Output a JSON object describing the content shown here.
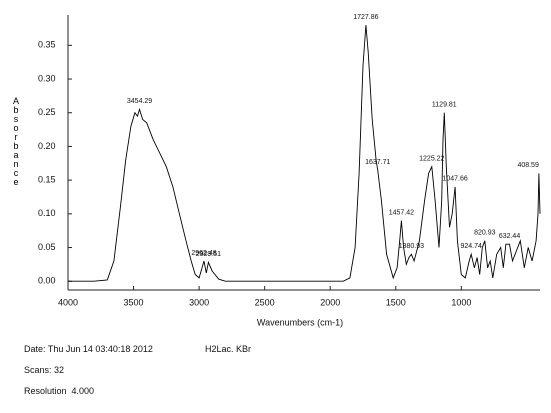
{
  "chart_data": {
    "type": "line",
    "y_label": "Absorbance",
    "x_label": "Wavenumbers (cm-1)",
    "color": "#000000",
    "xlim": [
      4000,
      400
    ],
    "ylim": [
      -0.013,
      0.395
    ],
    "xticks": [
      4000,
      3500,
      3000,
      2500,
      2000,
      1500,
      1000
    ],
    "yticks": [
      {
        "value": 0,
        "label": "0.00"
      },
      {
        "value": 0.05,
        "label": "0.05"
      },
      {
        "value": 0.1,
        "label": "0.10"
      },
      {
        "value": 0.15,
        "label": "0.15"
      },
      {
        "value": 0.2,
        "label": "0.20"
      },
      {
        "value": 0.25,
        "label": "0.25"
      },
      {
        "value": 0.3,
        "label": "0.30"
      },
      {
        "value": 0.35,
        "label": "0.35"
      }
    ],
    "x": [
      4000,
      3800,
      3700,
      3650,
      3600,
      3560,
      3520,
      3490,
      3470,
      3454.29,
      3430,
      3400,
      3350,
      3300,
      3250,
      3200,
      3150,
      3100,
      3060,
      3030,
      3000,
      2962.48,
      2945,
      2929.51,
      2900,
      2850,
      2800,
      2500,
      2100,
      1900,
      1850,
      1810,
      1780,
      1750,
      1727.86,
      1710,
      1680,
      1650,
      1637.71,
      1610,
      1570,
      1520,
      1490,
      1470,
      1457.42,
      1440,
      1420,
      1400,
      1380.93,
      1360,
      1320,
      1280,
      1250,
      1225.22,
      1200,
      1170,
      1150,
      1140,
      1129.81,
      1115,
      1090,
      1070,
      1047.66,
      1030,
      1000,
      970,
      940,
      924.74,
      900,
      880,
      860,
      840,
      820.93,
      800,
      780,
      760,
      730,
      700,
      680,
      660,
      632.44,
      610,
      580,
      550,
      520,
      490,
      460,
      430,
      415,
      408.59,
      400
    ],
    "values": [
      0,
      0,
      0.002,
      0.03,
      0.11,
      0.18,
      0.23,
      0.25,
      0.245,
      0.255,
      0.24,
      0.235,
      0.21,
      0.19,
      0.17,
      0.14,
      0.1,
      0.06,
      0.03,
      0.01,
      0.005,
      0.03,
      0.012,
      0.028,
      0.015,
      0.003,
      0,
      0,
      0,
      0,
      0.005,
      0.05,
      0.16,
      0.32,
      0.38,
      0.34,
      0.24,
      0.18,
      0.165,
      0.12,
      0.04,
      0.005,
      0.02,
      0.06,
      0.09,
      0.05,
      0.025,
      0.035,
      0.04,
      0.03,
      0.06,
      0.12,
      0.16,
      0.17,
      0.12,
      0.05,
      0.12,
      0.21,
      0.25,
      0.17,
      0.08,
      0.1,
      0.14,
      0.06,
      0.01,
      0.005,
      0.03,
      0.04,
      0.02,
      0.035,
      0.01,
      0.05,
      0.06,
      0.02,
      0.03,
      0.005,
      0.04,
      0.05,
      0.02,
      0.055,
      0.055,
      0.03,
      0.045,
      0.06,
      0.02,
      0.05,
      0.03,
      0.06,
      0.1,
      0.16,
      0.1
    ],
    "peaks": [
      {
        "x": 3454.29,
        "y": 0.255
      },
      {
        "x": 2962.48,
        "y": 0.03
      },
      {
        "x": 2929.51,
        "y": 0.028
      },
      {
        "x": 1727.86,
        "y": 0.38
      },
      {
        "x": 1637.71,
        "y": 0.165
      },
      {
        "x": 1457.42,
        "y": 0.09
      },
      {
        "x": 1380.93,
        "y": 0.04
      },
      {
        "x": 1225.22,
        "y": 0.17
      },
      {
        "x": 1129.81,
        "y": 0.25
      },
      {
        "x": 1047.66,
        "y": 0.14
      },
      {
        "x": 924.74,
        "y": 0.04
      },
      {
        "x": 820.93,
        "y": 0.06
      },
      {
        "x": 632.44,
        "y": 0.055
      },
      {
        "x": 408.59,
        "y": 0.16
      }
    ]
  },
  "footer": {
    "date": "Date: Thu Jun 14 03:40:18 2012",
    "sample": "H2Lac. KBr",
    "scans": "Scans: 32",
    "resolution": "Resolution  4.000"
  }
}
